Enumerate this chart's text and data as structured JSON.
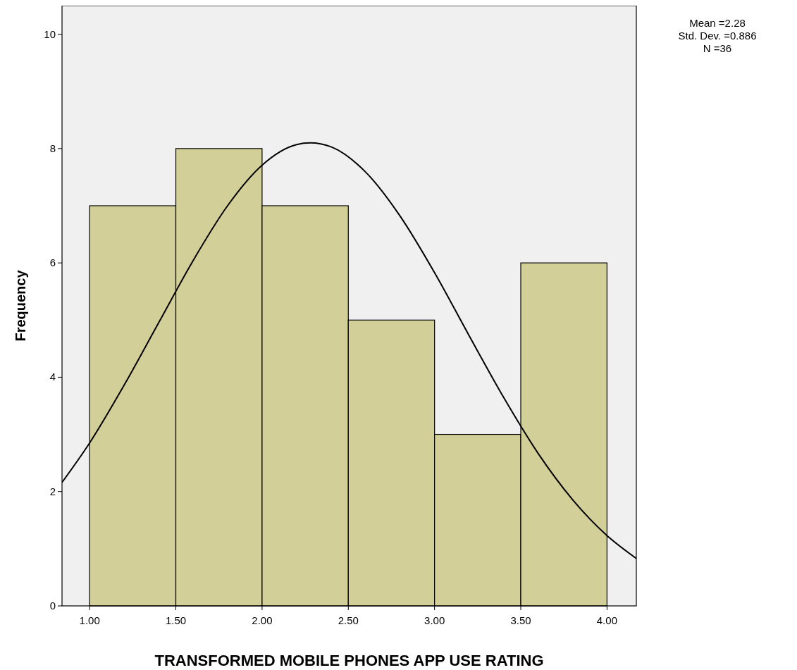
{
  "chart_data": {
    "type": "histogram",
    "xlabel": "TRANSFORMED MOBILE PHONES APP USE RATING",
    "ylabel": "Frequency",
    "bins": [
      1.0,
      1.5,
      2.0,
      2.5,
      3.0,
      3.5,
      4.0
    ],
    "values": [
      7,
      8,
      7,
      5,
      3,
      6
    ],
    "color": "#d3cf98",
    "series": [
      {
        "type": "line",
        "color": "#000000",
        "x": [
          0.84,
          1.0,
          1.2,
          1.4,
          1.6,
          1.8,
          2.0,
          2.2,
          2.28,
          2.4,
          2.6,
          2.8,
          3.0,
          3.2,
          3.4,
          3.6,
          3.8,
          4.0,
          4.17
        ],
        "values": [
          2.16,
          2.85,
          3.86,
          4.95,
          6.04,
          7.0,
          7.71,
          8.07,
          8.1,
          8.03,
          7.59,
          6.82,
          5.83,
          4.73,
          3.65,
          2.67,
          1.86,
          1.23,
          0.83
        ]
      }
    ],
    "xlim": [
      0.84,
      4.17
    ],
    "xticks": [
      {
        "value": 1,
        "label": "1.00"
      },
      {
        "value": 1.5,
        "label": "1.50"
      },
      {
        "value": 2,
        "label": "2.00"
      },
      {
        "value": 2.5,
        "label": "2.50"
      },
      {
        "value": 3,
        "label": "3.00"
      },
      {
        "value": 3.5,
        "label": "3.50"
      },
      {
        "value": 4,
        "label": "4.00"
      }
    ],
    "ylim": [
      0,
      10.5
    ],
    "yticks": [
      0,
      2,
      4,
      6,
      8,
      10
    ],
    "annotations": [
      "Mean =2.28",
      "Std. Dev. =0.886",
      "N =36"
    ]
  }
}
